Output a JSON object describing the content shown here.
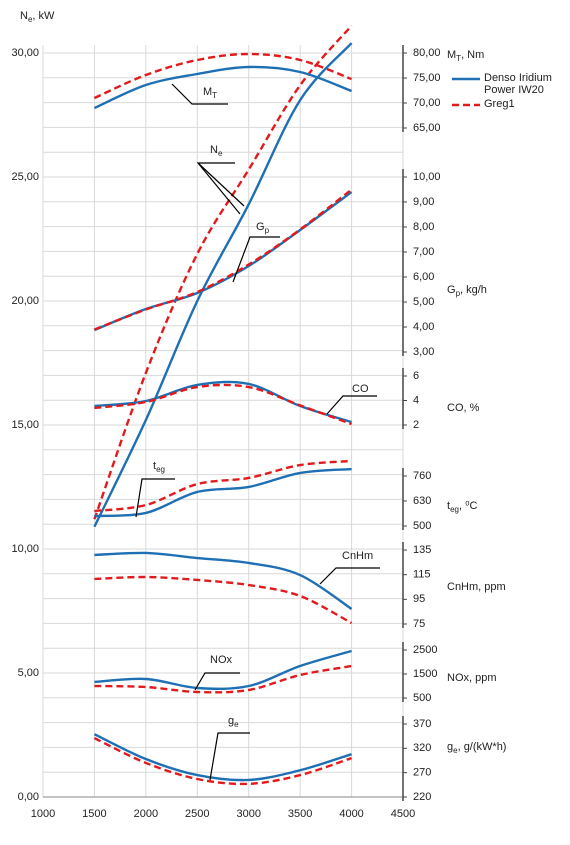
{
  "chart_data": [
    {
      "type": "line",
      "xlim": [
        1000,
        4500
      ],
      "xticks": [
        1000,
        1500,
        2000,
        2500,
        3000,
        3500,
        4000,
        4500
      ],
      "ylim": [
        0,
        30
      ],
      "yticks": [
        {
          "value": 0,
          "label": "0,00"
        },
        {
          "value": 5,
          "label": "5,00"
        },
        {
          "value": 10,
          "label": "10,00"
        },
        {
          "value": 15,
          "label": "15,00"
        },
        {
          "value": 20,
          "label": "20,00"
        },
        {
          "value": 25,
          "label": "25,00"
        },
        {
          "value": 30,
          "label": "30,00"
        }
      ],
      "minor_yticks": [
        0,
        1,
        2,
        3,
        4,
        5,
        6,
        7,
        8,
        9,
        10,
        11,
        12,
        13,
        14,
        15,
        16,
        17,
        18,
        19,
        20,
        21,
        22,
        23,
        24,
        25,
        26,
        27,
        28,
        29,
        30
      ],
      "grid": true,
      "legend": "upper right",
      "ylabel": [
        "N",
        "e",
        ", kW"
      ],
      "annotation": [
        "N",
        "e"
      ],
      "x": [
        1500,
        2000,
        2500,
        3000,
        3500,
        4000
      ],
      "series": [
        {
          "name": "Denso Iridium Power IW20",
          "color": "#1f6fb4",
          "linestyle": "solid",
          "values": [
            10.9,
            15.2,
            20.0,
            23.9,
            28.1,
            30.4
          ]
        },
        {
          "name": "Greg1",
          "color": "#e31a1c",
          "linestyle": "dashed",
          "values": [
            11.2,
            17.1,
            21.9,
            25.3,
            28.7,
            31.1
          ]
        }
      ]
    },
    {
      "type": "line",
      "axis": "y2",
      "ylim": [
        65,
        80
      ],
      "yticks": [
        {
          "value": 65,
          "label": "65,00"
        },
        {
          "value": 70,
          "label": "70,00"
        },
        {
          "value": 75,
          "label": "75,00"
        },
        {
          "value": 80,
          "label": "80,00"
        }
      ],
      "ylabel": [
        "M",
        "T",
        ", Nm"
      ],
      "annotation": [
        "M",
        "T"
      ],
      "x": [
        1500,
        2000,
        2500,
        3000,
        3500,
        4000
      ],
      "series": [
        {
          "color": "#1f6fb4",
          "linestyle": "solid",
          "values": [
            69.0,
            73.6,
            75.8,
            77.2,
            76.2,
            72.4
          ]
        },
        {
          "color": "#e31a1c",
          "linestyle": "dashed",
          "values": [
            71.0,
            75.6,
            78.6,
            79.8,
            78.6,
            74.8
          ]
        }
      ]
    },
    {
      "type": "line",
      "axis": "y2",
      "ylim": [
        3,
        10
      ],
      "yticks": [
        {
          "value": 3,
          "label": "3,00"
        },
        {
          "value": 4,
          "label": "4,00"
        },
        {
          "value": 5,
          "label": "5,00"
        },
        {
          "value": 6,
          "label": "6,00"
        },
        {
          "value": 7,
          "label": "7,00"
        },
        {
          "value": 8,
          "label": "8,00"
        },
        {
          "value": 9,
          "label": "9,00"
        },
        {
          "value": 10,
          "label": "10,00"
        }
      ],
      "ylabel": [
        "G",
        "p",
        ", kg/h"
      ],
      "annotation": [
        "G",
        "p"
      ],
      "x": [
        1500,
        2000,
        2500,
        3000,
        3500,
        4000
      ],
      "series": [
        {
          "color": "#1f6fb4",
          "linestyle": "solid",
          "values": [
            3.88,
            4.72,
            5.36,
            6.44,
            7.88,
            9.4
          ]
        },
        {
          "color": "#e31a1c",
          "linestyle": "dashed",
          "values": [
            3.9,
            4.7,
            5.4,
            6.5,
            7.9,
            9.5
          ]
        }
      ]
    },
    {
      "type": "line",
      "axis": "y2",
      "ylim": [
        2,
        6
      ],
      "yticks": [
        2,
        4,
        6
      ],
      "ylabel": [
        "CO, %"
      ],
      "annotation": [
        "CO"
      ],
      "x": [
        1500,
        2000,
        2500,
        3000,
        3500,
        4000
      ],
      "series": [
        {
          "color": "#1f6fb4",
          "linestyle": "solid",
          "values": [
            3.55,
            3.96,
            5.27,
            5.35,
            3.55,
            2.24
          ]
        },
        {
          "color": "#e31a1c",
          "linestyle": "dashed",
          "values": [
            3.39,
            3.88,
            5.1,
            5.1,
            3.6,
            2.08
          ]
        }
      ]
    },
    {
      "type": "line",
      "axis": "y2",
      "ylim": [
        500,
        760
      ],
      "yticks": [
        500,
        630,
        760
      ],
      "ylabel": [
        "t",
        "eg",
        ", ⁰C"
      ],
      "annotation": [
        "t",
        "eg"
      ],
      "x": [
        1500,
        2000,
        2500,
        3000,
        3500,
        4000
      ],
      "series": [
        {
          "color": "#1f6fb4",
          "linestyle": "solid",
          "values": [
            552,
            568,
            677,
            703,
            776,
            796
          ]
        },
        {
          "color": "#e31a1c",
          "linestyle": "dashed",
          "values": [
            578,
            609,
            718,
            750,
            817,
            838
          ]
        }
      ]
    },
    {
      "type": "line",
      "axis": "y2",
      "ylim": [
        75,
        135
      ],
      "yticks": [
        75,
        95,
        115,
        135
      ],
      "ylabel": [
        "CnHm, ppm"
      ],
      "annotation": [
        "CnHm"
      ],
      "x": [
        1500,
        2000,
        2500,
        3000,
        3500,
        4000
      ],
      "series": [
        {
          "color": "#1f6fb4",
          "linestyle": "solid",
          "values": [
            131,
            132.6,
            128.5,
            124.5,
            114.7,
            87.2
          ]
        },
        {
          "color": "#e31a1c",
          "linestyle": "dashed",
          "values": [
            111.5,
            113.1,
            110.7,
            106.6,
            97.7,
            75.8
          ]
        }
      ]
    },
    {
      "type": "line",
      "axis": "y2",
      "ylim": [
        500,
        2500
      ],
      "yticks": [
        500,
        1500,
        2500
      ],
      "ylabel": [
        "NOx, ppm"
      ],
      "annotation": [
        "NOx"
      ],
      "x": [
        1500,
        2000,
        2500,
        3000,
        3500,
        4000
      ],
      "series": [
        {
          "color": "#1f6fb4",
          "linestyle": "solid",
          "values": [
            1167,
            1292,
            917,
            1000,
            1833,
            2458
          ]
        },
        {
          "color": "#e31a1c",
          "linestyle": "dashed",
          "values": [
            1000,
            958,
            750,
            833,
            1458,
            1833
          ]
        }
      ]
    },
    {
      "type": "line",
      "axis": "y2",
      "ylim": [
        220,
        370
      ],
      "yticks": [
        220,
        270,
        320,
        370
      ],
      "ylabel": [
        "g",
        "e",
        ", g/(kW*h)"
      ],
      "annotation": [
        "g",
        "e"
      ],
      "x": [
        1500,
        2000,
        2500,
        3000,
        3500,
        4000
      ],
      "series": [
        {
          "color": "#1f6fb4",
          "linestyle": "solid",
          "values": [
            349,
            298,
            265,
            255,
            275,
            308
          ]
        },
        {
          "color": "#e31a1c",
          "linestyle": "dashed",
          "values": [
            341,
            290,
            257,
            247,
            265,
            300
          ]
        }
      ]
    }
  ]
}
